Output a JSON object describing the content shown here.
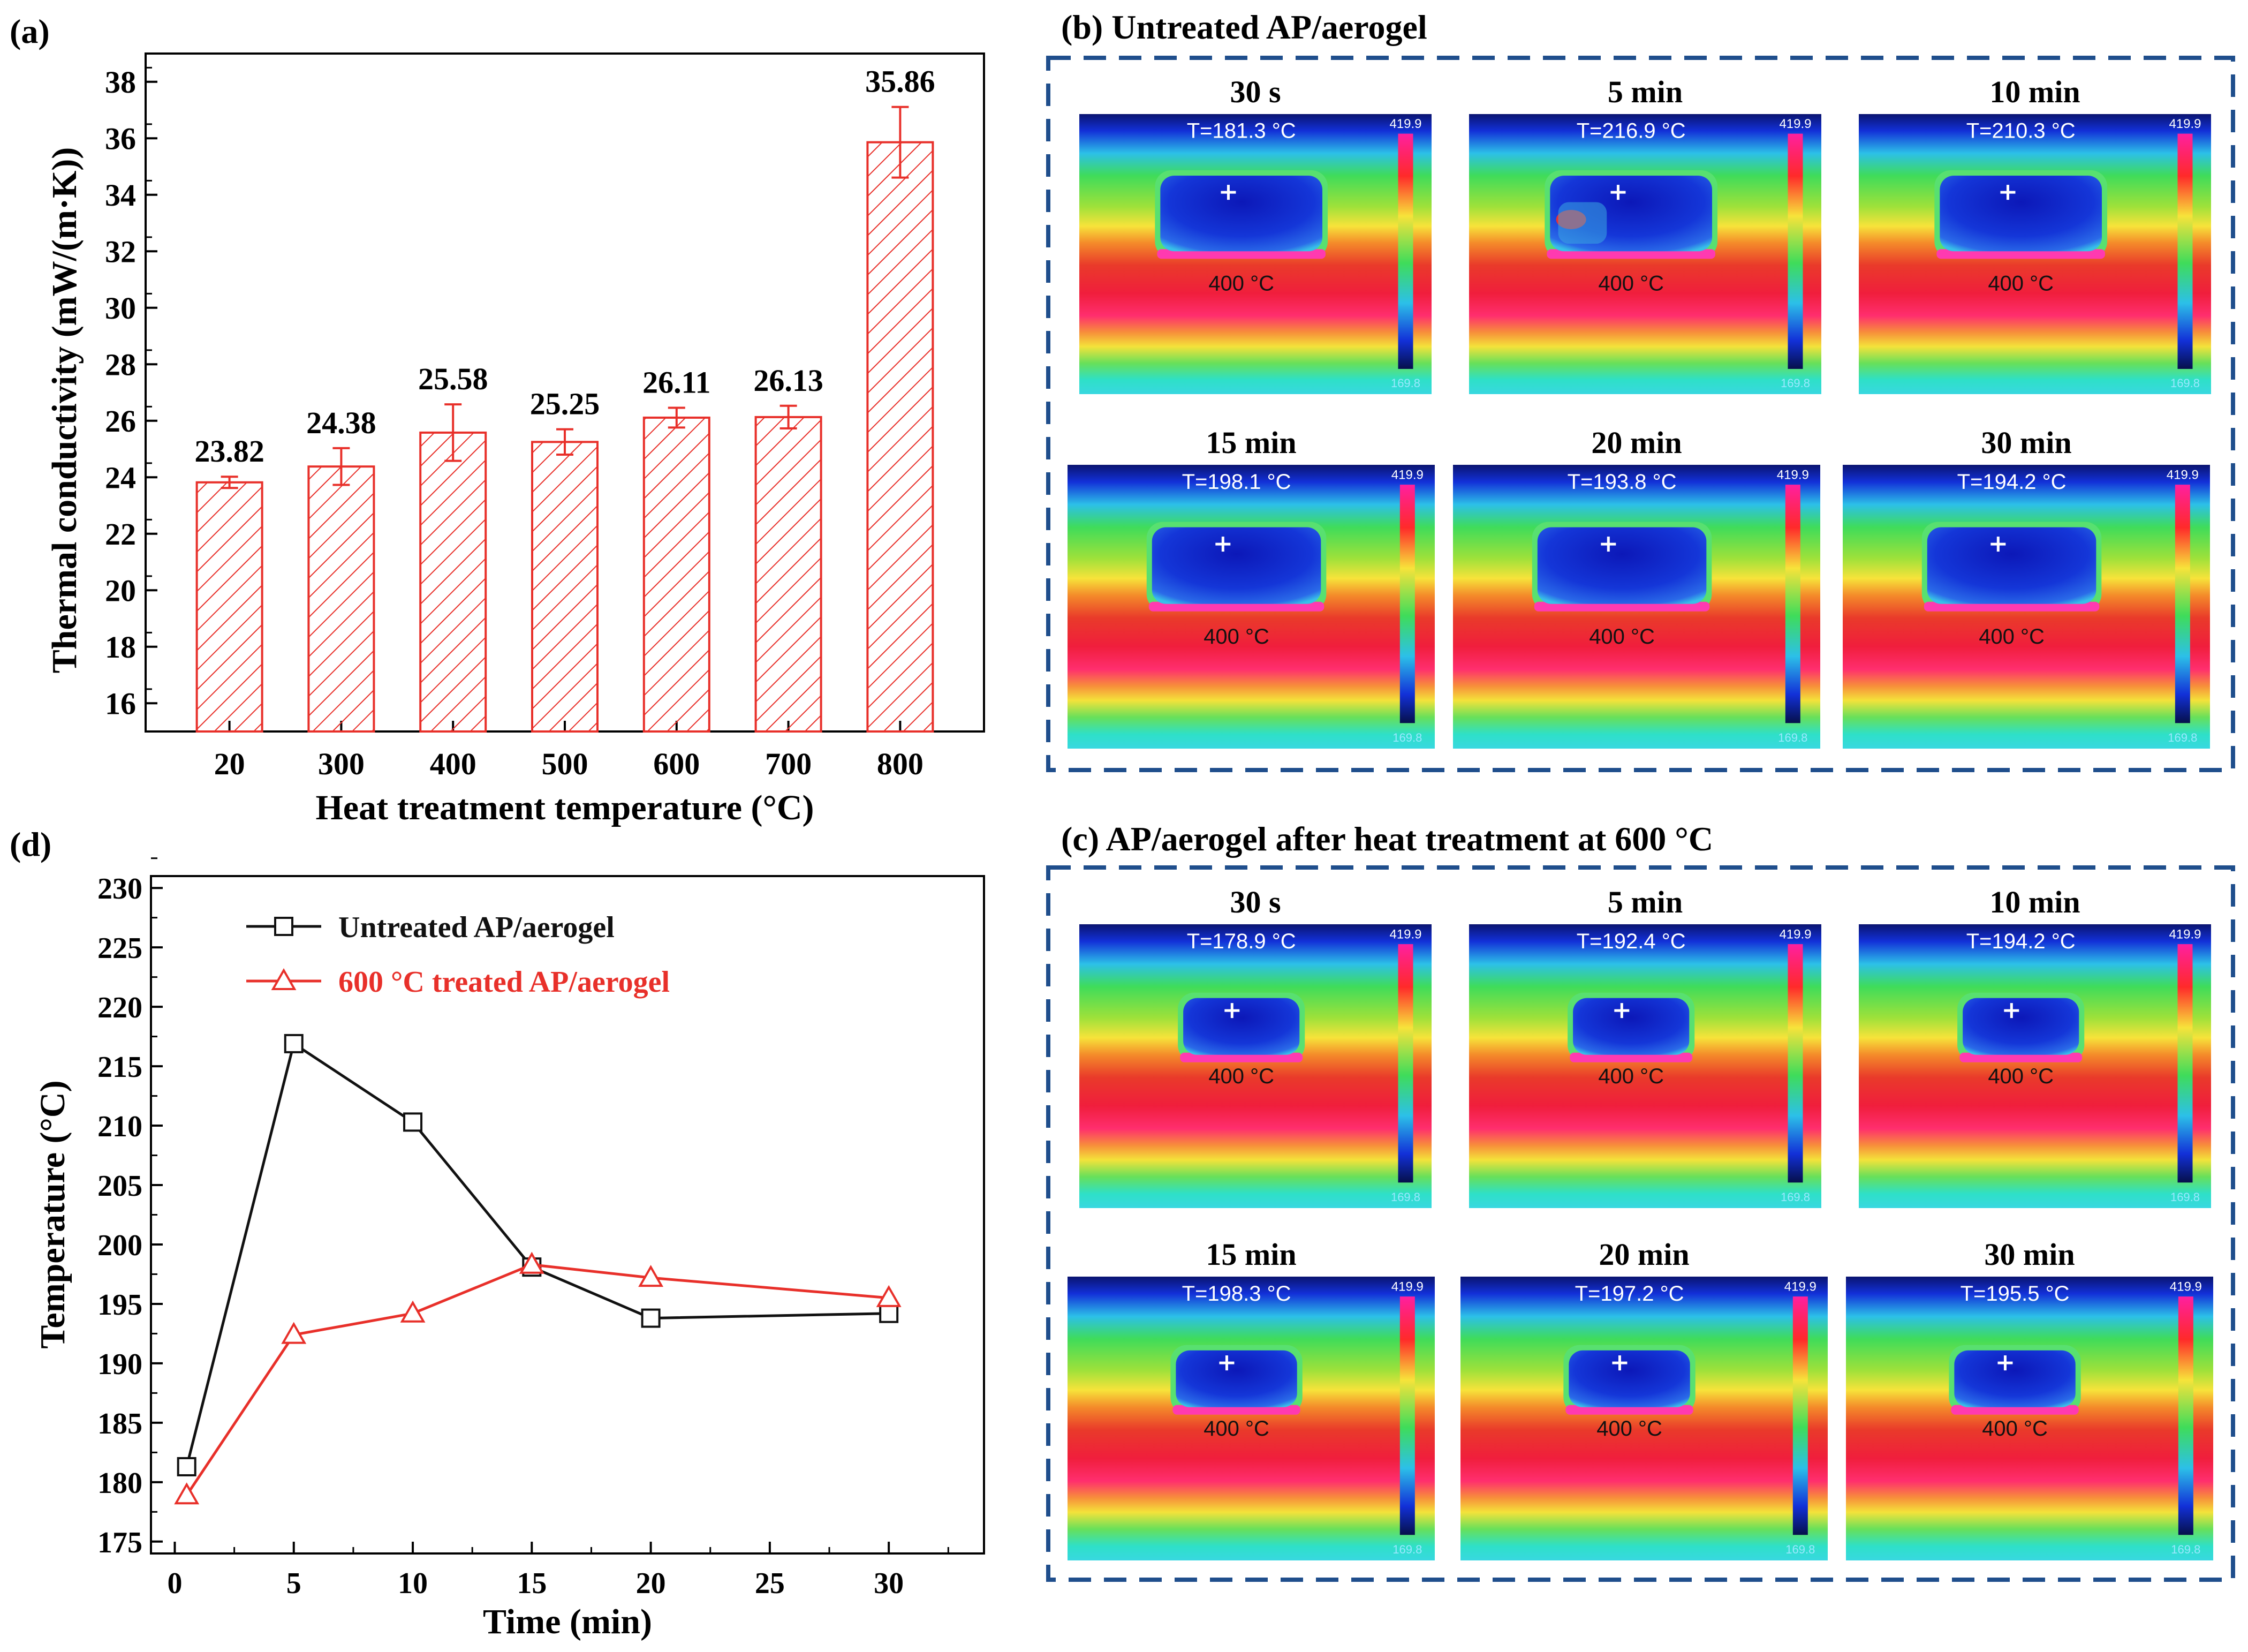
{
  "colors": {
    "bar_red": "#e8302a",
    "line_black": "#111111",
    "frame_blue": "#1f4e8c"
  },
  "panel_a": {
    "tag": "(a)"
  },
  "panel_b": {
    "tag": "(b) Untreated AP/aerogel"
  },
  "panel_c": {
    "tag": "(c) AP/aerogel after heat treatment at 600 °C"
  },
  "panel_d": {
    "tag": "(d)"
  },
  "chart_data": [
    {
      "id": "a",
      "type": "bar",
      "title": "",
      "xlabel": "Heat treatment temperature (°C)",
      "ylabel": "Thermal conductivity (mW/(m·K))",
      "categories": [
        "20",
        "300",
        "400",
        "500",
        "600",
        "700",
        "800"
      ],
      "values": [
        23.82,
        24.38,
        25.58,
        25.25,
        26.11,
        26.13,
        35.86
      ],
      "value_labels": [
        "23.82",
        "24.38",
        "25.58",
        "25.25",
        "26.11",
        "26.13",
        "35.86"
      ],
      "errors": [
        0.2,
        0.65,
        1.0,
        0.45,
        0.35,
        0.4,
        1.25
      ],
      "ylim": [
        15,
        39
      ],
      "yticks": [
        16,
        18,
        20,
        22,
        24,
        26,
        28,
        30,
        32,
        34,
        36,
        38
      ],
      "bar_style": "hatched",
      "color": "#e8302a",
      "grid": false
    },
    {
      "id": "d",
      "type": "line",
      "title": "",
      "xlabel": "Time (min)",
      "ylabel": "Temperature (°C)",
      "xlim": [
        -1,
        34
      ],
      "ylim": [
        174,
        231
      ],
      "xticks": [
        0,
        5,
        10,
        15,
        20,
        25,
        30
      ],
      "yticks": [
        175,
        180,
        185,
        190,
        195,
        200,
        205,
        210,
        215,
        220,
        225,
        230
      ],
      "legend_position": "top-left",
      "grid": false,
      "series": [
        {
          "name": "Untreated AP/aerogel",
          "color": "#111111",
          "marker": "square",
          "x": [
            0.5,
            5,
            10,
            15,
            20,
            30
          ],
          "y": [
            181.3,
            216.9,
            210.3,
            198.1,
            193.8,
            194.2
          ]
        },
        {
          "name": "600 °C treated AP/aerogel",
          "color": "#e8302a",
          "marker": "triangle",
          "x": [
            0.5,
            5,
            10,
            15,
            20,
            30
          ],
          "y": [
            178.9,
            192.4,
            194.2,
            198.3,
            197.2,
            195.5
          ]
        }
      ]
    }
  ],
  "thermal_images": {
    "b": [
      {
        "time": "30 s",
        "temp": "T=181.3 °C",
        "base": "400 °C",
        "scale_max": "419.9",
        "scale_min": "169.8",
        "variant": "tall"
      },
      {
        "time": "5 min",
        "temp": "T=216.9 °C",
        "base": "400 °C",
        "scale_max": "419.9",
        "scale_min": "169.8",
        "variant": "tall-hot"
      },
      {
        "time": "10 min",
        "temp": "T=210.3 °C",
        "base": "400 °C",
        "scale_max": "419.9",
        "scale_min": "169.8",
        "variant": "tall"
      },
      {
        "time": "15 min",
        "temp": "T=198.1 °C",
        "base": "400 °C",
        "scale_max": "419.9",
        "scale_min": "169.8",
        "variant": "tall"
      },
      {
        "time": "20 min",
        "temp": "T=193.8 °C",
        "base": "400 °C",
        "scale_max": "419.9",
        "scale_min": "169.8",
        "variant": "tall"
      },
      {
        "time": "30 min",
        "temp": "T=194.2 °C",
        "base": "400 °C",
        "scale_max": "419.9",
        "scale_min": "169.8",
        "variant": "tall"
      }
    ],
    "c": [
      {
        "time": "30 s",
        "temp": "T=178.9 °C",
        "base": "400 °C",
        "scale_max": "419.9",
        "scale_min": "169.8",
        "variant": "small"
      },
      {
        "time": "5 min",
        "temp": "T=192.4 °C",
        "base": "400 °C",
        "scale_max": "419.9",
        "scale_min": "169.8",
        "variant": "small"
      },
      {
        "time": "10 min",
        "temp": "T=194.2 °C",
        "base": "400 °C",
        "scale_max": "419.9",
        "scale_min": "169.8",
        "variant": "small"
      },
      {
        "time": "15 min",
        "temp": "T=198.3 °C",
        "base": "400 °C",
        "scale_max": "419.9",
        "scale_min": "169.8",
        "variant": "small"
      },
      {
        "time": "20 min",
        "temp": "T=197.2 °C",
        "base": "400 °C",
        "scale_max": "419.9",
        "scale_min": "169.8",
        "variant": "small"
      },
      {
        "time": "30 min",
        "temp": "T=195.5 °C",
        "base": "400 °C",
        "scale_max": "419.9",
        "scale_min": "169.8",
        "variant": "small"
      }
    ]
  }
}
